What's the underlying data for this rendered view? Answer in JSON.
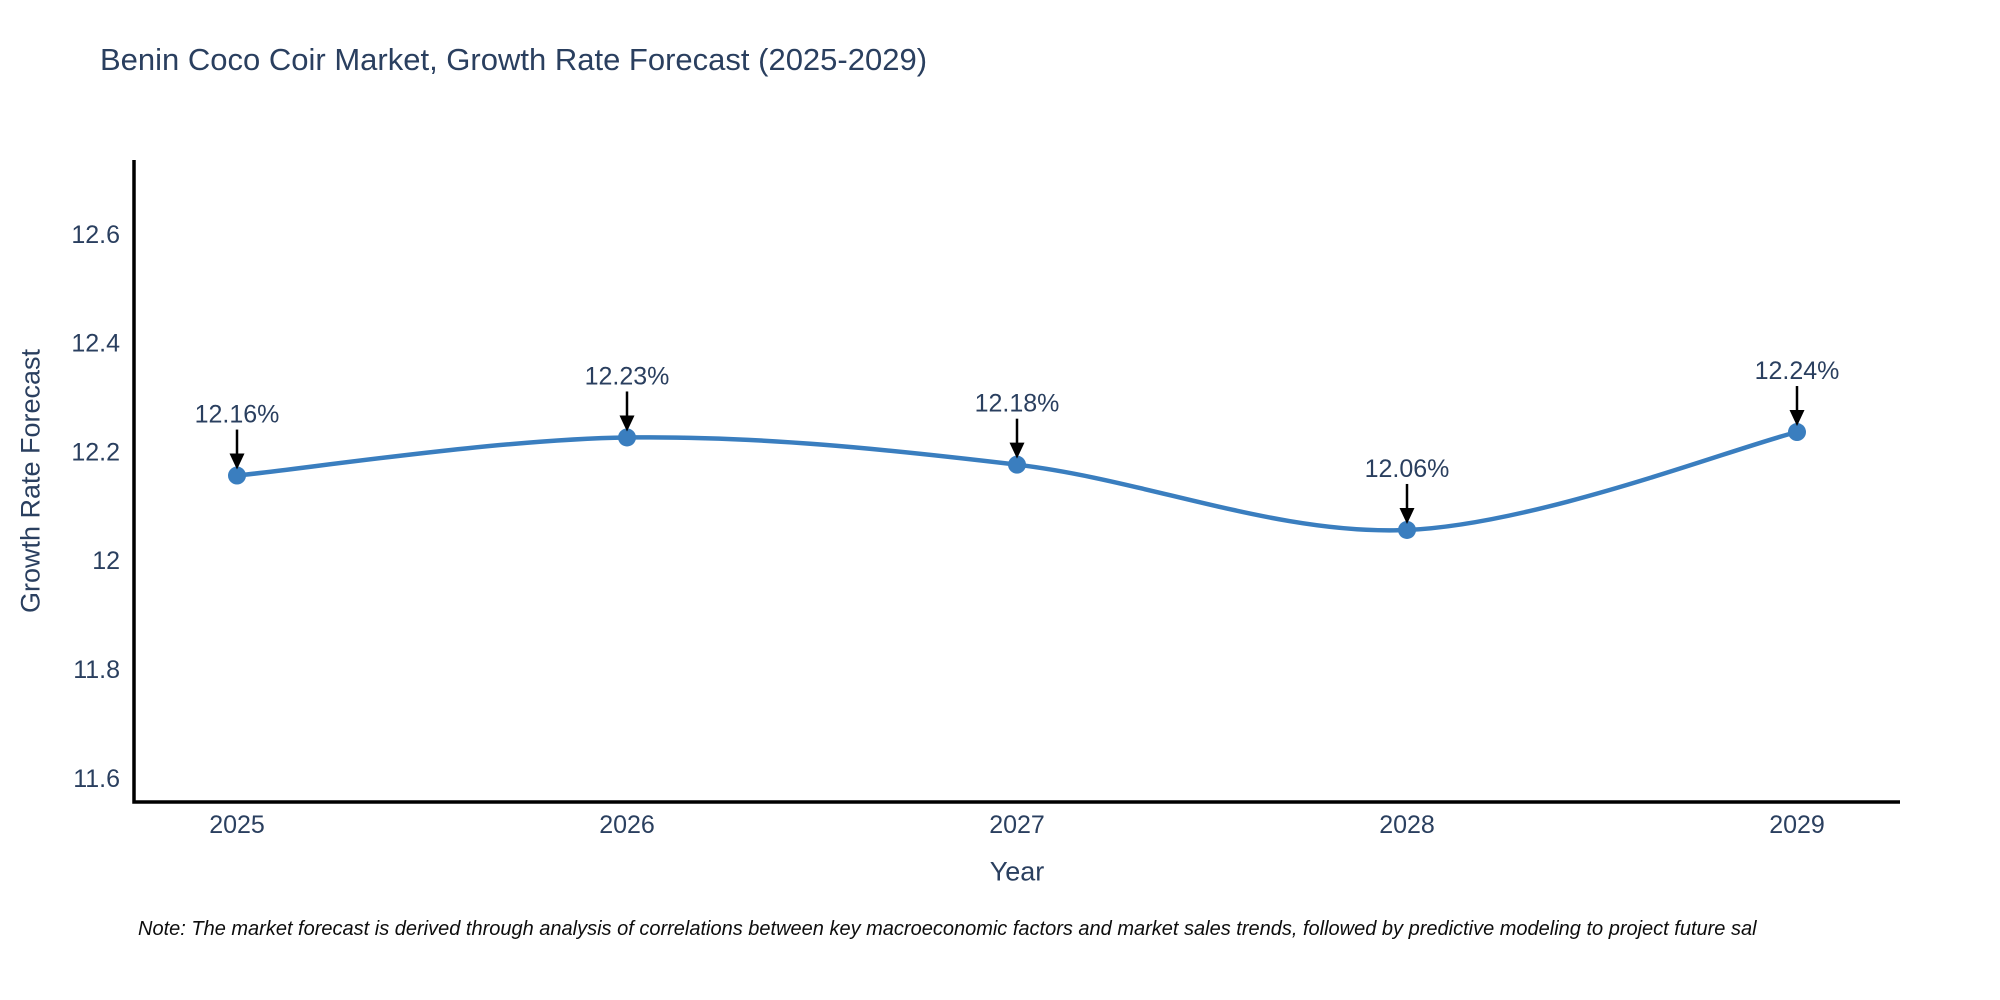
{
  "title": "Benin Coco Coir Market, Growth Rate Forecast (2025-2029)",
  "note": "Note: The market forecast is derived through analysis of correlations between key macroeconomic factors and market sales trends, followed by predictive modeling to project future sal",
  "chart_data": {
    "type": "line",
    "title": "Benin Coco Coir Market, Growth Rate Forecast (2025-2029)",
    "xlabel": "Year",
    "ylabel": "Growth Rate Forecast",
    "x": [
      2025,
      2026,
      2027,
      2028,
      2029
    ],
    "values": [
      12.16,
      12.23,
      12.18,
      12.06,
      12.24
    ],
    "point_labels": [
      "12.16%",
      "12.23%",
      "12.18%",
      "12.06%",
      "12.24%"
    ],
    "yticks": [
      11.6,
      11.8,
      12,
      12.2,
      12.4,
      12.6
    ],
    "ylim": [
      11.56,
      12.74
    ],
    "line_shape": "spline",
    "grid": false,
    "legend": "none",
    "colors": {
      "line": "#3a7ebf",
      "marker": "#3a7ebf",
      "axis_line": "#000000",
      "tick_text": "#2a3f5f",
      "annotation_text": "#2a3f5f",
      "annotation_arrow": "#000000",
      "background": "#ffffff"
    }
  }
}
